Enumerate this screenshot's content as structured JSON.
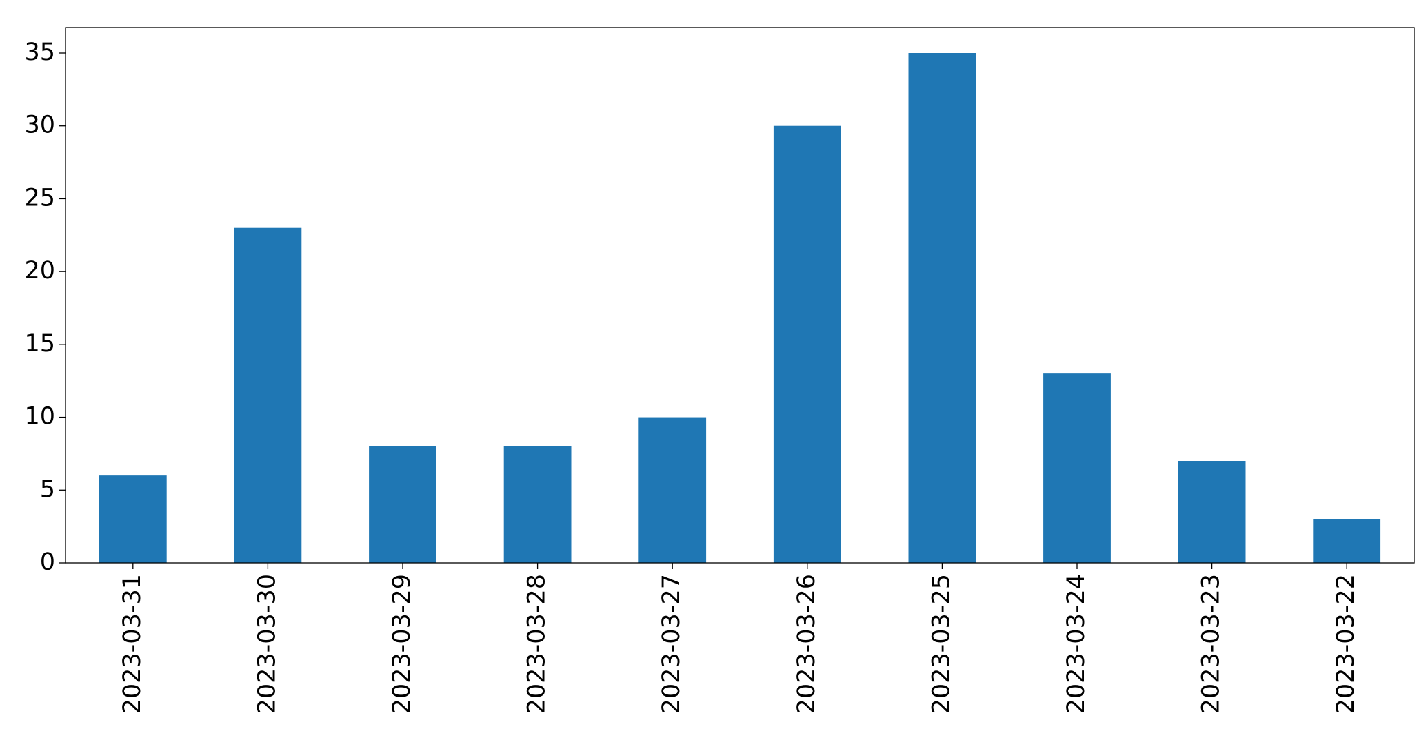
{
  "chart_data": {
    "type": "bar",
    "categories": [
      "2023-03-31",
      "2023-03-30",
      "2023-03-29",
      "2023-03-28",
      "2023-03-27",
      "2023-03-26",
      "2023-03-25",
      "2023-03-24",
      "2023-03-23",
      "2023-03-22"
    ],
    "values": [
      6,
      23,
      8,
      8,
      10,
      30,
      35,
      13,
      7,
      3
    ],
    "color": "#1f77b4",
    "ylim": [
      0,
      36.75
    ],
    "yticks": [
      0,
      5,
      10,
      15,
      20,
      25,
      30,
      35
    ],
    "grid": false
  }
}
